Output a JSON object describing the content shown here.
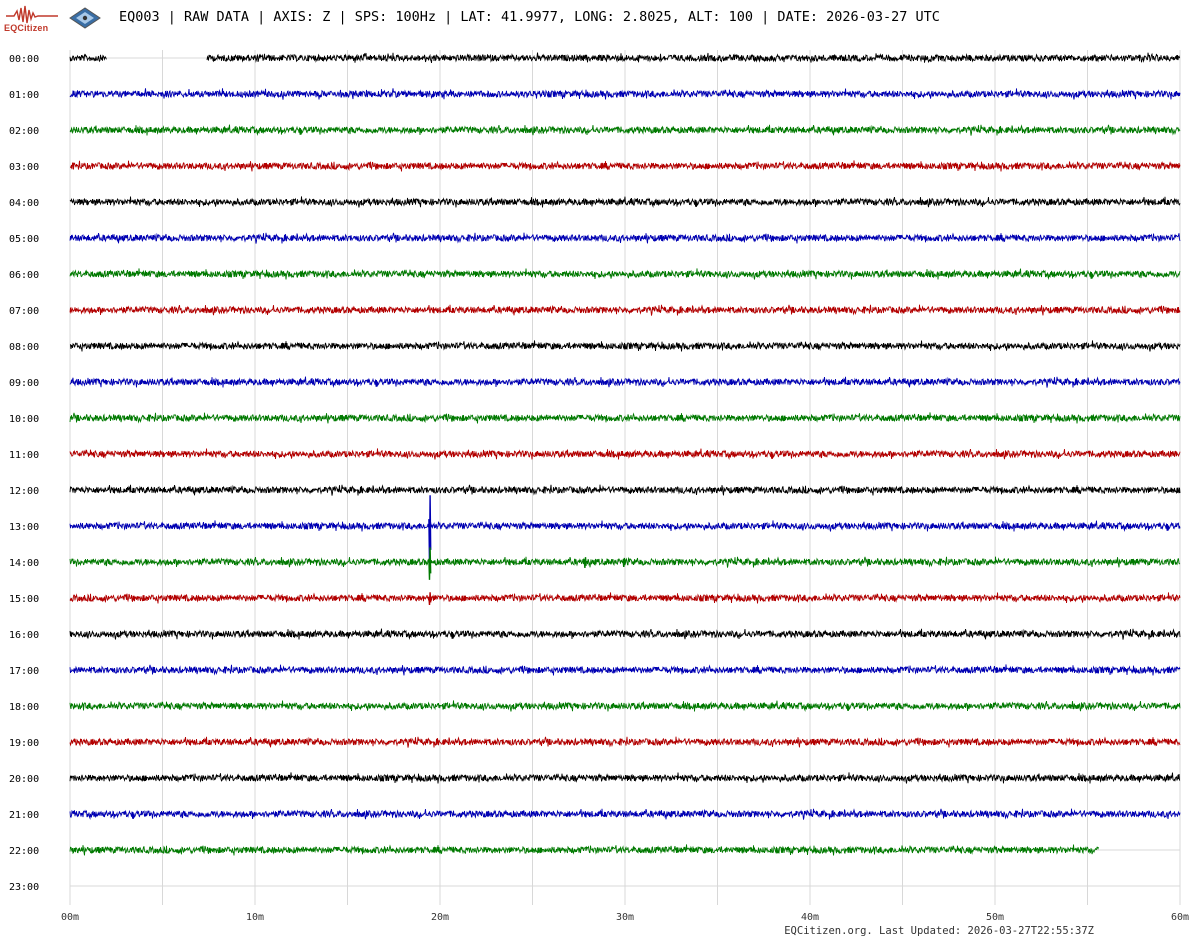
{
  "header": {
    "title": "EQ003 | RAW DATA | AXIS: Z | SPS: 100Hz | LAT: 41.9977, LONG: 2.8025, ALT: 100 | DATE: 2026-03-27 UTC",
    "logo_text": "EQCitizen"
  },
  "footer": {
    "text": "EQCitizen.org. Last Updated: 2026-03-27T22:55:37Z"
  },
  "colors": {
    "cycle": [
      "#000000",
      "#0000b3",
      "#007a00",
      "#b30000"
    ],
    "grid": "#d8d8d8",
    "logo": "#c0392b"
  },
  "chart_data": {
    "type": "line",
    "title": "EQ003 | RAW DATA | AXIS: Z | SPS: 100Hz | LAT: 41.9977, LONG: 2.8025, ALT: 100 | DATE: 2026-03-27 UTC",
    "x_ticks": [
      "00m",
      "10m",
      "20m",
      "30m",
      "40m",
      "50m",
      "60m"
    ],
    "xlim": [
      0,
      60
    ],
    "x_unit": "minutes",
    "grid": true,
    "rows": [
      "00:00",
      "01:00",
      "02:00",
      "03:00",
      "04:00",
      "05:00",
      "06:00",
      "07:00",
      "08:00",
      "09:00",
      "10:00",
      "11:00",
      "12:00",
      "13:00",
      "14:00",
      "15:00",
      "16:00",
      "17:00",
      "18:00",
      "19:00",
      "20:00",
      "21:00",
      "22:00",
      "23:00"
    ],
    "row_data_end_minutes": [
      60,
      60,
      60,
      60,
      60,
      60,
      60,
      60,
      60,
      60,
      60,
      60,
      60,
      60,
      60,
      60,
      60,
      60,
      60,
      60,
      60,
      60,
      55.6,
      0
    ],
    "row_gaps_minutes": [
      [
        {
          "start": 2.0,
          "end": 7.4
        }
      ]
    ],
    "events": [
      {
        "row": "13:00",
        "minute": 19.4,
        "amplitude": 1.9
      },
      {
        "row": "14:00",
        "minute": 19.4,
        "amplitude": 0.9
      },
      {
        "row": "14:00",
        "minute": 27.8,
        "amplitude": 0.3
      },
      {
        "row": "14:00",
        "minute": 29.9,
        "amplitude": 0.25
      },
      {
        "row": "15:00",
        "minute": 19.4,
        "amplitude": 0.35
      }
    ]
  }
}
